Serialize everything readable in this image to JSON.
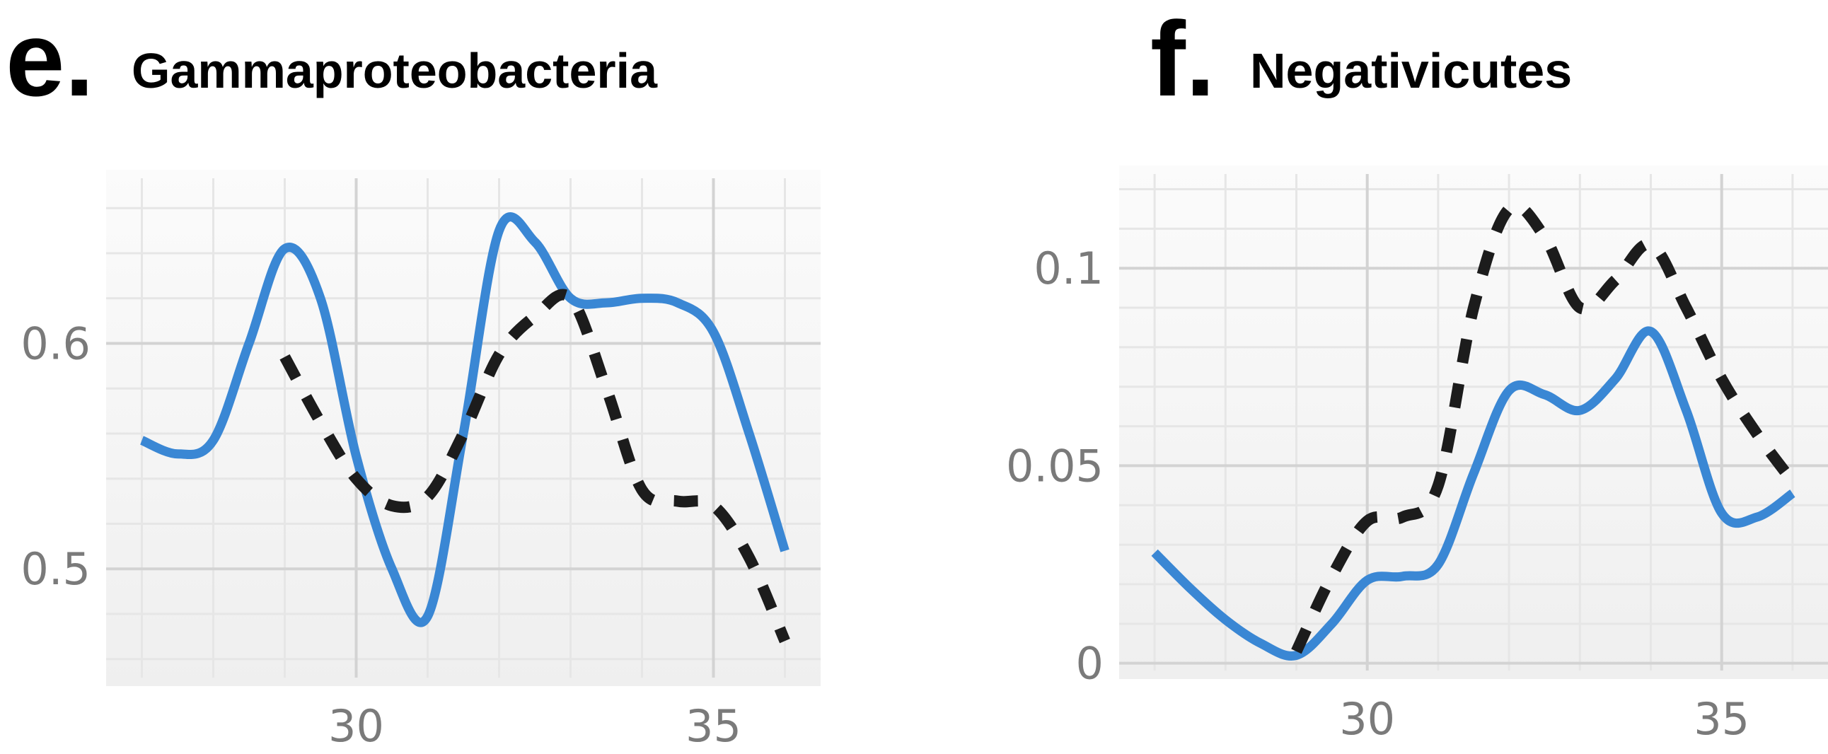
{
  "colors": {
    "solid": "#3a87d4",
    "dashed": "#1c1c1c",
    "grid_major": "#d3d3d3",
    "grid_minor": "#e6e6e6",
    "tick_text": "#7a7a7a"
  },
  "chart_data": [
    {
      "type": "line",
      "panel_letter": "e.",
      "title": "Gammaproteobacteria",
      "xlabel": "",
      "ylabel": "",
      "xlim": [
        26.5,
        36.5
      ],
      "ylim": [
        0.448,
        0.677
      ],
      "x_ticks": [
        30,
        35
      ],
      "x_tick_labels": [
        "30",
        "35"
      ],
      "y_ticks": [
        0.5,
        0.6
      ],
      "y_tick_labels": [
        "0.5",
        "0.6"
      ],
      "grid": true,
      "series": [
        {
          "style": "solid",
          "x": [
            27,
            27.5,
            28,
            28.5,
            29,
            29.5,
            30,
            30.5,
            31,
            31.5,
            32,
            32.5,
            33,
            33.5,
            34,
            34.5,
            35,
            35.5,
            36
          ],
          "y": [
            0.557,
            0.551,
            0.557,
            0.6,
            0.642,
            0.62,
            0.55,
            0.5,
            0.479,
            0.56,
            0.65,
            0.645,
            0.62,
            0.618,
            0.62,
            0.618,
            0.605,
            0.56,
            0.508
          ]
        },
        {
          "style": "dashed",
          "x": [
            29,
            29.5,
            30,
            30.5,
            31,
            31.5,
            32,
            32.5,
            33,
            33.5,
            34,
            34.5,
            35,
            35.5,
            36
          ],
          "y": [
            0.594,
            0.565,
            0.54,
            0.528,
            0.532,
            0.56,
            0.595,
            0.612,
            0.62,
            0.58,
            0.535,
            0.53,
            0.528,
            0.505,
            0.468
          ]
        }
      ]
    },
    {
      "type": "line",
      "panel_letter": "f.",
      "title": "Negativicutes",
      "xlabel": "",
      "ylabel": "",
      "xlim": [
        26.5,
        36.5
      ],
      "ylim": [
        -0.004,
        0.126
      ],
      "x_ticks": [
        30,
        35
      ],
      "x_tick_labels": [
        "30",
        "35"
      ],
      "y_ticks": [
        0,
        0.05,
        0.1
      ],
      "y_tick_labels": [
        "0",
        "0.05",
        "0.1"
      ],
      "grid": true,
      "series": [
        {
          "style": "solid",
          "x": [
            27,
            27.5,
            28,
            28.5,
            29,
            29.5,
            30,
            30.5,
            31,
            31.5,
            32,
            32.5,
            33,
            33.5,
            34,
            34.5,
            35,
            35.5,
            36
          ],
          "y": [
            0.028,
            0.019,
            0.011,
            0.005,
            0.002,
            0.01,
            0.021,
            0.022,
            0.025,
            0.048,
            0.069,
            0.068,
            0.064,
            0.072,
            0.084,
            0.064,
            0.038,
            0.037,
            0.043
          ]
        },
        {
          "style": "dashed",
          "x": [
            29,
            29.5,
            30,
            30.5,
            31,
            31.5,
            32,
            32.5,
            33,
            33.5,
            34,
            34.5,
            35,
            35.5,
            36
          ],
          "y": [
            0.003,
            0.022,
            0.036,
            0.037,
            0.045,
            0.09,
            0.115,
            0.108,
            0.09,
            0.097,
            0.106,
            0.09,
            0.072,
            0.058,
            0.046
          ]
        }
      ]
    }
  ]
}
